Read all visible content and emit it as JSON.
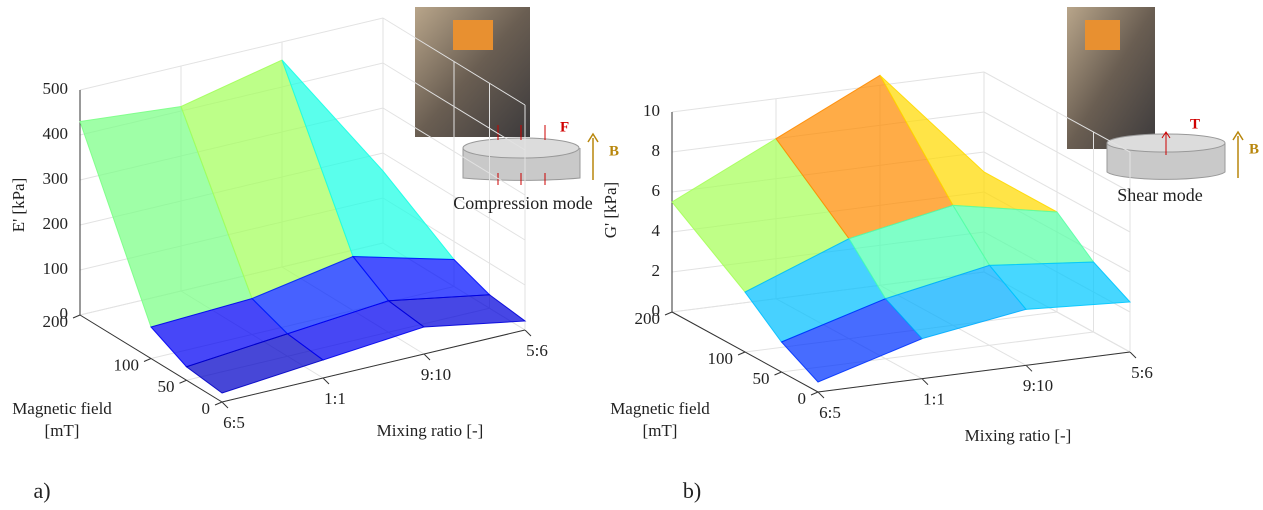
{
  "chart_data": [
    {
      "type": "surface",
      "panel_label": "a)",
      "zlabel": "E' [kPa]",
      "xlabel": "Mixing ratio [-]",
      "ylabel": [
        "Magnetic field",
        "[mT]"
      ],
      "categories": [
        "6:5",
        "1:1",
        "9:10",
        "5:6"
      ],
      "y": [
        0,
        50,
        100,
        200
      ],
      "ylim": [
        0,
        200
      ],
      "yticks": [
        0,
        50,
        100,
        200
      ],
      "zlim": [
        0,
        500
      ],
      "zticks": [
        0,
        100,
        200,
        300,
        400,
        500
      ],
      "z": [
        [
          20,
          40,
          60,
          20
        ],
        [
          30,
          50,
          70,
          30
        ],
        [
          70,
          80,
          120,
          60
        ],
        [
          430,
          410,
          460,
          160
        ]
      ],
      "annotations": [
        "F",
        "B",
        "Compression mode"
      ]
    },
    {
      "type": "surface",
      "panel_label": "b)",
      "zlabel": "G' [kPa]",
      "xlabel": "Mixing ratio [-]",
      "ylabel": [
        "Magnetic field",
        "[mT]"
      ],
      "categories": [
        "6:5",
        "1:1",
        "9:10",
        "5:6"
      ],
      "y": [
        0,
        50,
        100,
        200
      ],
      "ylim": [
        0,
        200
      ],
      "yticks": [
        0,
        50,
        100,
        200
      ],
      "zlim": [
        0,
        10
      ],
      "zticks": [
        0,
        2,
        4,
        6,
        8,
        10
      ],
      "z": [
        [
          0.5,
          2.0,
          2.8,
          2.5
        ],
        [
          1.5,
          3.0,
          4.0,
          3.5
        ],
        [
          3.0,
          5.0,
          6.0,
          5.0
        ],
        [
          5.5,
          8.0,
          10.5,
          5.0
        ]
      ],
      "annotations": [
        "T",
        "B",
        "Shear mode"
      ]
    }
  ]
}
